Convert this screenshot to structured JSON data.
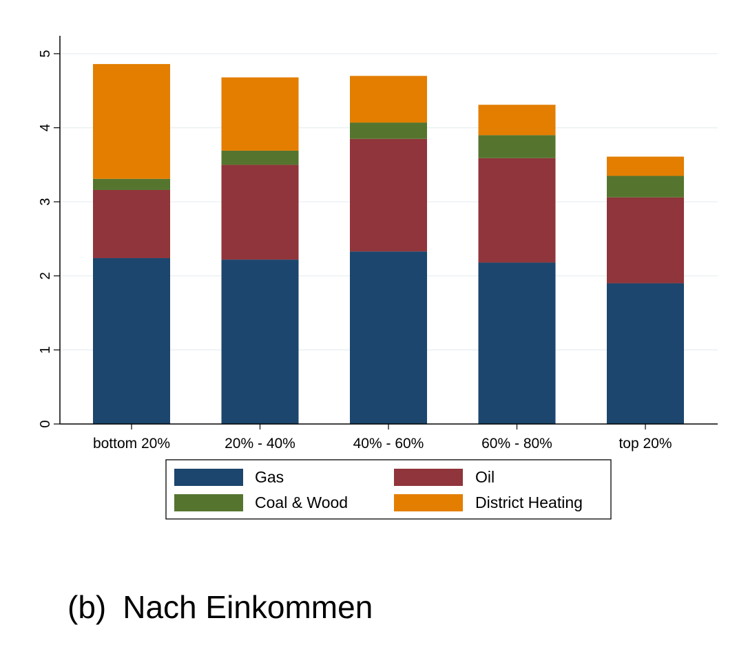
{
  "chart_data": {
    "type": "bar",
    "stacked": true,
    "title": "",
    "xlabel": "",
    "ylabel": "",
    "ylim": [
      0,
      5
    ],
    "yticks": [
      0,
      1,
      2,
      3,
      4,
      5
    ],
    "grid": true,
    "legend_position": "bottom",
    "categories": [
      "bottom 20%",
      "20% - 40%",
      "40% - 60%",
      "60% - 80%",
      "top 20%"
    ],
    "series": [
      {
        "name": "Gas",
        "color": "#1c466d",
        "values": [
          2.24,
          2.22,
          2.33,
          2.18,
          1.9
        ]
      },
      {
        "name": "Oil",
        "color": "#90353b",
        "values": [
          0.92,
          1.28,
          1.52,
          1.41,
          1.16
        ]
      },
      {
        "name": "Coal & Wood",
        "color": "#55752f",
        "values": [
          0.15,
          0.19,
          0.22,
          0.31,
          0.29
        ]
      },
      {
        "name": "District Heating",
        "color": "#e37e00",
        "values": [
          1.55,
          0.99,
          0.63,
          0.41,
          0.26
        ]
      }
    ]
  },
  "caption": {
    "label": "(b)",
    "text": "Nach Einkommen"
  }
}
